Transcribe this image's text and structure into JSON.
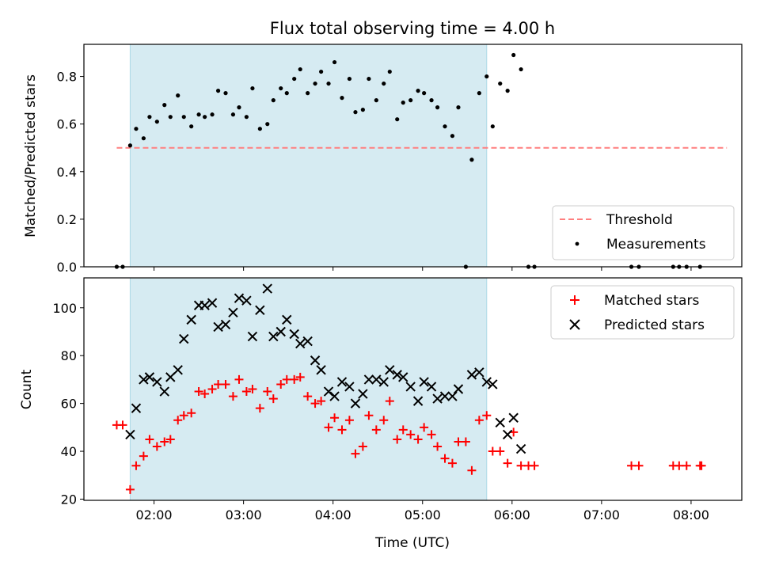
{
  "title": "Flux total observing time = 4.00 h",
  "xlabel": "Time (UTC)",
  "colors": {
    "shade": "#add8e6",
    "threshold": "#ff7f7f",
    "matched": "#ff0000",
    "predicted": "#000000",
    "measurement": "#000000"
  },
  "chart_data": [
    {
      "type": "scatter",
      "ylabel": "Matched/Predicted stars",
      "xlim": [
        "01:13",
        "08:34"
      ],
      "ylim": [
        0,
        0.935
      ],
      "yticks": [
        "0.0",
        "0.2",
        "0.4",
        "0.6",
        "0.8"
      ],
      "shaded_span": [
        "01:44",
        "05:43"
      ],
      "threshold": {
        "name": "Threshold",
        "value": 0.5,
        "x_range": [
          "01:35",
          "08:24"
        ]
      },
      "legend": {
        "location": "lower right",
        "entries": [
          "Threshold",
          "Measurements"
        ]
      },
      "series": [
        {
          "name": "Measurements",
          "points": [
            [
              "01:35",
              0.0
            ],
            [
              "01:39",
              0.0
            ],
            [
              "01:44",
              0.51
            ],
            [
              "01:48",
              0.58
            ],
            [
              "01:53",
              0.54
            ],
            [
              "01:57",
              0.63
            ],
            [
              "02:02",
              0.61
            ],
            [
              "02:07",
              0.68
            ],
            [
              "02:11",
              0.63
            ],
            [
              "02:16",
              0.72
            ],
            [
              "02:20",
              0.63
            ],
            [
              "02:25",
              0.59
            ],
            [
              "02:30",
              0.64
            ],
            [
              "02:34",
              0.63
            ],
            [
              "02:39",
              0.64
            ],
            [
              "02:43",
              0.74
            ],
            [
              "02:48",
              0.73
            ],
            [
              "02:53",
              0.64
            ],
            [
              "02:57",
              0.67
            ],
            [
              "03:02",
              0.63
            ],
            [
              "03:06",
              0.75
            ],
            [
              "03:11",
              0.58
            ],
            [
              "03:16",
              0.6
            ],
            [
              "03:20",
              0.7
            ],
            [
              "03:25",
              0.75
            ],
            [
              "03:29",
              0.73
            ],
            [
              "03:34",
              0.79
            ],
            [
              "03:38",
              0.83
            ],
            [
              "03:43",
              0.73
            ],
            [
              "03:48",
              0.77
            ],
            [
              "03:52",
              0.82
            ],
            [
              "03:57",
              0.77
            ],
            [
              "04:01",
              0.86
            ],
            [
              "04:06",
              0.71
            ],
            [
              "04:11",
              0.79
            ],
            [
              "04:15",
              0.65
            ],
            [
              "04:20",
              0.66
            ],
            [
              "04:24",
              0.79
            ],
            [
              "04:29",
              0.7
            ],
            [
              "04:34",
              0.77
            ],
            [
              "04:38",
              0.82
            ],
            [
              "04:43",
              0.62
            ],
            [
              "04:47",
              0.69
            ],
            [
              "04:52",
              0.7
            ],
            [
              "04:57",
              0.74
            ],
            [
              "05:01",
              0.73
            ],
            [
              "05:06",
              0.7
            ],
            [
              "05:10",
              0.67
            ],
            [
              "05:15",
              0.59
            ],
            [
              "05:20",
              0.55
            ],
            [
              "05:24",
              0.67
            ],
            [
              "05:29",
              0.0
            ],
            [
              "05:33",
              0.45
            ],
            [
              "05:38",
              0.73
            ],
            [
              "05:43",
              0.8
            ],
            [
              "05:47",
              0.59
            ],
            [
              "05:52",
              0.77
            ],
            [
              "05:57",
              0.74
            ],
            [
              "06:01",
              0.89
            ],
            [
              "06:06",
              0.83
            ],
            [
              "06:11",
              0.0
            ],
            [
              "06:15",
              0.0
            ],
            [
              "07:20",
              0.0
            ],
            [
              "07:25",
              0.0
            ],
            [
              "07:48",
              0.0
            ],
            [
              "07:52",
              0.0
            ],
            [
              "07:57",
              0.0
            ],
            [
              "08:06",
              0.0
            ]
          ]
        }
      ]
    },
    {
      "type": "scatter",
      "ylabel": "Count",
      "xlim": [
        "01:13",
        "08:34"
      ],
      "ylim": [
        19.5,
        112.5
      ],
      "yticks": [
        "20",
        "40",
        "60",
        "80",
        "100"
      ],
      "xticks": [
        "02:00",
        "03:00",
        "04:00",
        "05:00",
        "06:00",
        "07:00",
        "08:00"
      ],
      "shaded_span": [
        "01:44",
        "05:43"
      ],
      "legend": {
        "location": "upper right",
        "entries": [
          "Matched stars",
          "Predicted stars"
        ]
      },
      "series": [
        {
          "name": "Matched stars",
          "marker": "+",
          "points": [
            [
              "01:35",
              51
            ],
            [
              "01:39",
              51
            ],
            [
              "01:44",
              24
            ],
            [
              "01:48",
              34
            ],
            [
              "01:53",
              38
            ],
            [
              "01:57",
              45
            ],
            [
              "02:02",
              42
            ],
            [
              "02:07",
              44
            ],
            [
              "02:11",
              45
            ],
            [
              "02:16",
              53
            ],
            [
              "02:20",
              55
            ],
            [
              "02:25",
              56
            ],
            [
              "02:30",
              65
            ],
            [
              "02:34",
              64
            ],
            [
              "02:39",
              66
            ],
            [
              "02:43",
              68
            ],
            [
              "02:48",
              68
            ],
            [
              "02:53",
              63
            ],
            [
              "02:57",
              70
            ],
            [
              "03:02",
              65
            ],
            [
              "03:06",
              66
            ],
            [
              "03:11",
              58
            ],
            [
              "03:16",
              65
            ],
            [
              "03:20",
              62
            ],
            [
              "03:25",
              68
            ],
            [
              "03:29",
              70
            ],
            [
              "03:34",
              70
            ],
            [
              "03:38",
              71
            ],
            [
              "03:43",
              63
            ],
            [
              "03:48",
              60
            ],
            [
              "03:52",
              61
            ],
            [
              "03:57",
              50
            ],
            [
              "04:01",
              54
            ],
            [
              "04:06",
              49
            ],
            [
              "04:11",
              53
            ],
            [
              "04:15",
              39
            ],
            [
              "04:20",
              42
            ],
            [
              "04:24",
              55
            ],
            [
              "04:29",
              49
            ],
            [
              "04:34",
              53
            ],
            [
              "04:38",
              61
            ],
            [
              "04:43",
              45
            ],
            [
              "04:47",
              49
            ],
            [
              "04:52",
              47
            ],
            [
              "04:57",
              45
            ],
            [
              "05:01",
              50
            ],
            [
              "05:06",
              47
            ],
            [
              "05:10",
              42
            ],
            [
              "05:15",
              37
            ],
            [
              "05:20",
              35
            ],
            [
              "05:24",
              44
            ],
            [
              "05:29",
              44
            ],
            [
              "05:33",
              32
            ],
            [
              "05:38",
              53
            ],
            [
              "05:43",
              55
            ],
            [
              "05:47",
              40
            ],
            [
              "05:52",
              40
            ],
            [
              "05:57",
              35
            ],
            [
              "06:01",
              48
            ],
            [
              "06:06",
              34
            ],
            [
              "06:11",
              34
            ],
            [
              "06:15",
              34
            ],
            [
              "07:20",
              34
            ],
            [
              "07:25",
              34
            ],
            [
              "07:48",
              34
            ],
            [
              "07:52",
              34
            ],
            [
              "07:57",
              34
            ],
            [
              "08:06",
              34
            ],
            [
              "08:07",
              34
            ]
          ]
        },
        {
          "name": "Predicted stars",
          "marker": "x",
          "points": [
            [
              "01:44",
              47
            ],
            [
              "01:48",
              58
            ],
            [
              "01:53",
              70
            ],
            [
              "01:57",
              71
            ],
            [
              "02:02",
              69
            ],
            [
              "02:07",
              65
            ],
            [
              "02:11",
              71
            ],
            [
              "02:16",
              74
            ],
            [
              "02:20",
              87
            ],
            [
              "02:25",
              95
            ],
            [
              "02:30",
              101
            ],
            [
              "02:34",
              101
            ],
            [
              "02:39",
              102
            ],
            [
              "02:43",
              92
            ],
            [
              "02:48",
              93
            ],
            [
              "02:53",
              98
            ],
            [
              "02:57",
              104
            ],
            [
              "03:02",
              103
            ],
            [
              "03:06",
              88
            ],
            [
              "03:11",
              99
            ],
            [
              "03:16",
              108
            ],
            [
              "03:20",
              88
            ],
            [
              "03:25",
              90
            ],
            [
              "03:29",
              95
            ],
            [
              "03:34",
              89
            ],
            [
              "03:38",
              85
            ],
            [
              "03:43",
              86
            ],
            [
              "03:48",
              78
            ],
            [
              "03:52",
              74
            ],
            [
              "03:57",
              65
            ],
            [
              "04:01",
              63
            ],
            [
              "04:06",
              69
            ],
            [
              "04:11",
              67
            ],
            [
              "04:15",
              60
            ],
            [
              "04:20",
              64
            ],
            [
              "04:24",
              70
            ],
            [
              "04:29",
              70
            ],
            [
              "04:34",
              69
            ],
            [
              "04:38",
              74
            ],
            [
              "04:43",
              72
            ],
            [
              "04:47",
              71
            ],
            [
              "04:52",
              67
            ],
            [
              "04:57",
              61
            ],
            [
              "05:01",
              69
            ],
            [
              "05:06",
              67
            ],
            [
              "05:10",
              62
            ],
            [
              "05:15",
              63
            ],
            [
              "05:20",
              63
            ],
            [
              "05:24",
              66
            ],
            [
              "05:33",
              72
            ],
            [
              "05:38",
              73
            ],
            [
              "05:43",
              69
            ],
            [
              "05:47",
              68
            ],
            [
              "05:52",
              52
            ],
            [
              "05:57",
              47
            ],
            [
              "06:01",
              54
            ],
            [
              "06:06",
              41
            ]
          ]
        }
      ]
    }
  ]
}
